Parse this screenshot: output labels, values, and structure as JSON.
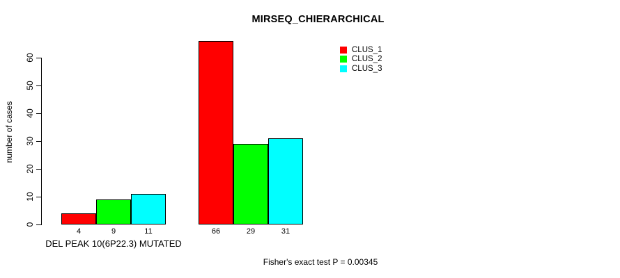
{
  "chart_data": {
    "type": "bar",
    "title": "MIRSEQ_CHIERARCHICAL",
    "ylabel": "number of cases",
    "xlabel": "DEL PEAK 10(6P22.3) MUTATED",
    "ylim": [
      0,
      66
    ],
    "yticks": [
      0,
      10,
      20,
      30,
      40,
      50,
      60
    ],
    "grid": false,
    "legend_position": "top-right",
    "categories": [
      "DEL PEAK 10(6P22.3) MUTATED",
      ""
    ],
    "series": [
      {
        "name": "CLUS_1",
        "color": "#ff0000",
        "values": [
          4,
          66
        ]
      },
      {
        "name": "CLUS_2",
        "color": "#00ff00",
        "values": [
          9,
          29
        ]
      },
      {
        "name": "CLUS_3",
        "color": "#00ffff",
        "values": [
          11,
          31
        ]
      }
    ],
    "bar_value_labels": [
      [
        4,
        9,
        11
      ],
      [
        66,
        29,
        31
      ]
    ],
    "annotation": "Fisher's exact test P = 0.00345"
  }
}
